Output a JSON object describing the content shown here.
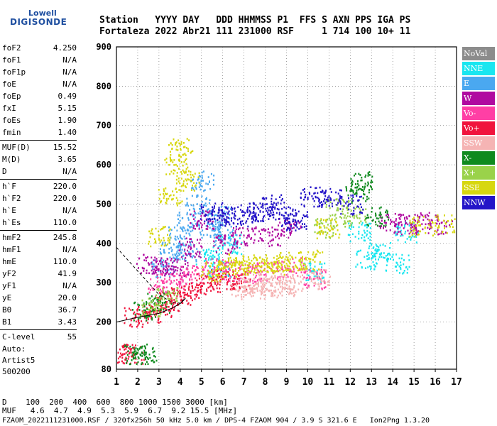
{
  "logo": {
    "line1": "Lowell",
    "line2": "DIGISONDE"
  },
  "header": {
    "line1": "Station   YYYY DAY   DDD HHMMSS P1  FFS S AXN PPS IGA PS",
    "line2": "Fortaleza 2022 Abr21 111 231000 RSF     1 714 100 10+ 11"
  },
  "params": [
    {
      "name": "foF2",
      "value": "4.250"
    },
    {
      "name": "foF1",
      "value": "N/A"
    },
    {
      "name": "foF1p",
      "value": "N/A"
    },
    {
      "name": "foE",
      "value": "N/A"
    },
    {
      "name": "foEp",
      "value": "0.49"
    },
    {
      "name": "fxI",
      "value": "5.15"
    },
    {
      "name": "foEs",
      "value": "1.90"
    },
    {
      "name": "fmin",
      "value": "1.40"
    },
    {
      "name": "MUF(D)",
      "value": "15.52"
    },
    {
      "name": "M(D)",
      "value": "3.65"
    },
    {
      "name": "D",
      "value": "N/A"
    },
    {
      "name": "h`F",
      "value": "220.0"
    },
    {
      "name": "h`F2",
      "value": "220.0"
    },
    {
      "name": "h`E",
      "value": "N/A"
    },
    {
      "name": "h`Es",
      "value": "110.0"
    },
    {
      "name": "hmF2",
      "value": "245.8"
    },
    {
      "name": "hmF1",
      "value": "N/A"
    },
    {
      "name": "hmE",
      "value": "110.0"
    },
    {
      "name": "yF2",
      "value": "41.9"
    },
    {
      "name": "yF1",
      "value": "N/A"
    },
    {
      "name": "yE",
      "value": "20.0"
    },
    {
      "name": "B0",
      "value": "36.7"
    },
    {
      "name": "B1",
      "value": "3.43"
    },
    {
      "name": "C-level",
      "value": "55"
    }
  ],
  "auto": {
    "line1": "Auto:",
    "line2": "Artist5",
    "line3": "500200"
  },
  "legend": [
    {
      "label": "NoVal",
      "color": "#8c8c8c"
    },
    {
      "label": "NNE",
      "color": "#19e6f0"
    },
    {
      "label": "E",
      "color": "#4aa8f0"
    },
    {
      "label": "W",
      "color": "#b00aa0"
    },
    {
      "label": "Vo-",
      "color": "#ff3fa5"
    },
    {
      "label": "Vo+",
      "color": "#f0143c"
    },
    {
      "label": "SSW",
      "color": "#f5b4b4"
    },
    {
      "label": "X-",
      "color": "#0f8a1e"
    },
    {
      "label": "X+",
      "color": "#9ad24a"
    },
    {
      "label": "SSE",
      "color": "#d7d70f"
    },
    {
      "label": "NNW",
      "color": "#2414c8"
    }
  ],
  "footer": {
    "line1": "D    100  200  400  600  800 1000 1500 3000 [km]",
    "line2": "MUF   4.6  4.7  4.9  5.3  5.9  6.7  9.2 15.5 [MHz]",
    "line3": "FZAOM_2022111231000.RSF / 320fx256h 50 kHz 5.0 km / DPS-4 FZAOM 904 / 3.9 S 321.6 E   Ion2Png 1.3.20"
  },
  "chart_data": {
    "type": "scatter",
    "x_ticks": [
      "1",
      "2",
      "3",
      "4",
      "5",
      "6",
      "7",
      "8",
      "9",
      "10",
      "11",
      "12",
      "13",
      "14",
      "15",
      "16",
      "17"
    ],
    "y_ticks": [
      "80",
      "200",
      "300",
      "400",
      "500",
      "600",
      "700",
      "800",
      "900"
    ],
    "xlim": [
      1,
      17
    ],
    "ylim": [
      80,
      900
    ],
    "grid": true,
    "legend_position": "right",
    "series": [
      {
        "name": "NNE",
        "color": "#19e6f0",
        "points": [
          [
            5.3,
            370
          ],
          [
            5.8,
            340
          ],
          [
            6.3,
            400
          ],
          [
            10.2,
            330
          ],
          [
            12.4,
            430
          ],
          [
            12.8,
            360
          ],
          [
            13.3,
            380
          ],
          [
            14.2,
            350
          ],
          [
            14.6,
            430
          ]
        ]
      },
      {
        "name": "E",
        "color": "#4aa8f0",
        "points": [
          [
            3.2,
            340
          ],
          [
            3.6,
            380
          ],
          [
            4.0,
            420
          ],
          [
            4.4,
            460
          ],
          [
            4.8,
            500
          ],
          [
            5.0,
            560
          ],
          [
            5.4,
            440
          ],
          [
            5.8,
            470
          ],
          [
            6.1,
            420
          ],
          [
            4.2,
            380
          ]
        ]
      },
      {
        "name": "W",
        "color": "#b00aa0",
        "points": [
          [
            2.5,
            350
          ],
          [
            3.2,
            345
          ],
          [
            3.8,
            340
          ],
          [
            4.5,
            390
          ],
          [
            5.0,
            460
          ],
          [
            6.1,
            400
          ],
          [
            7.0,
            420
          ],
          [
            8.2,
            420
          ],
          [
            9.1,
            440
          ],
          [
            13.9,
            460
          ],
          [
            14.6,
            450
          ],
          [
            15.2,
            455
          ],
          [
            16.2,
            450
          ]
        ]
      },
      {
        "name": "Vo-",
        "color": "#ff3fa5",
        "points": [
          [
            3.0,
            290
          ],
          [
            3.6,
            300
          ],
          [
            4.5,
            320
          ],
          [
            5.6,
            340
          ],
          [
            6.5,
            330
          ],
          [
            7.3,
            325
          ],
          [
            8.1,
            330
          ],
          [
            9.3,
            340
          ],
          [
            10.3,
            310
          ]
        ]
      },
      {
        "name": "Vo+",
        "color": "#f0143c",
        "points": [
          [
            1.9,
            215
          ],
          [
            2.5,
            225
          ],
          [
            3.1,
            240
          ],
          [
            3.5,
            255
          ],
          [
            4.0,
            270
          ],
          [
            4.6,
            280
          ],
          [
            5.3,
            300
          ],
          [
            6.0,
            310
          ],
          [
            6.7,
            310
          ],
          [
            1.2,
            120
          ],
          [
            1.8,
            120
          ]
        ]
      },
      {
        "name": "SSW",
        "color": "#f5b4b4",
        "points": [
          [
            6.9,
            290
          ],
          [
            7.4,
            285
          ],
          [
            7.8,
            300
          ],
          [
            8.3,
            295
          ],
          [
            8.8,
            290
          ],
          [
            9.2,
            300
          ],
          [
            10.5,
            310
          ]
        ]
      },
      {
        "name": "X-",
        "color": "#0f8a1e",
        "points": [
          [
            2.3,
            230
          ],
          [
            3.0,
            250
          ],
          [
            1.9,
            120
          ],
          [
            2.3,
            118
          ],
          [
            12.3,
            530
          ],
          [
            12.5,
            560
          ],
          [
            13.2,
            470
          ]
        ]
      },
      {
        "name": "X+",
        "color": "#9ad24a",
        "points": [
          [
            2.6,
            240
          ],
          [
            3.3,
            270
          ],
          [
            10.8,
            440
          ],
          [
            11.4,
            490
          ],
          [
            12.2,
            470
          ]
        ]
      },
      {
        "name": "SSE",
        "color": "#d7d70f",
        "points": [
          [
            3.0,
            420
          ],
          [
            3.5,
            520
          ],
          [
            3.8,
            600
          ],
          [
            4.0,
            650
          ],
          [
            4.3,
            560
          ],
          [
            5.5,
            330
          ],
          [
            6.2,
            340
          ],
          [
            6.8,
            350
          ],
          [
            7.4,
            345
          ],
          [
            8.0,
            350
          ],
          [
            8.6,
            345
          ],
          [
            9.1,
            355
          ],
          [
            10.1,
            360
          ],
          [
            10.9,
            440
          ],
          [
            15.3,
            445
          ],
          [
            16.5,
            450
          ]
        ]
      },
      {
        "name": "NNW",
        "color": "#2414c8",
        "points": [
          [
            5.5,
            480
          ],
          [
            6.0,
            470
          ],
          [
            6.6,
            470
          ],
          [
            7.3,
            480
          ],
          [
            7.9,
            480
          ],
          [
            8.3,
            500
          ],
          [
            8.9,
            470
          ],
          [
            9.4,
            460
          ],
          [
            10.2,
            520
          ],
          [
            11.0,
            520
          ],
          [
            12.0,
            500
          ]
        ]
      }
    ]
  }
}
